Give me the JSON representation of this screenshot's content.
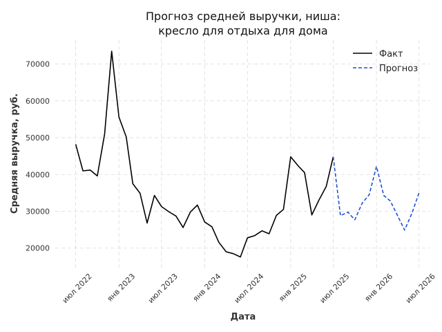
{
  "chart_data": {
    "type": "line",
    "title": [
      "Прогноз средней выручки, ниша:",
      "кресло для отдыха для дома"
    ],
    "xlabel": "Дата",
    "ylabel": "Средняя выручка, руб.",
    "ylim": [
      14500,
      76500
    ],
    "yticks": [
      20000,
      30000,
      40000,
      50000,
      60000,
      70000
    ],
    "xlim": [
      "2022-04-05",
      "2026-08-15"
    ],
    "xticks": [
      {
        "date": "2022-07-01",
        "label": "июл 2022"
      },
      {
        "date": "2023-01-01",
        "label": "янв 2023"
      },
      {
        "date": "2023-07-01",
        "label": "июл 2023"
      },
      {
        "date": "2024-01-01",
        "label": "янв 2024"
      },
      {
        "date": "2024-07-01",
        "label": "июл 2024"
      },
      {
        "date": "2025-01-01",
        "label": "янв 2025"
      },
      {
        "date": "2025-07-01",
        "label": "июл 2025"
      },
      {
        "date": "2026-01-01",
        "label": "янв 2026"
      },
      {
        "date": "2026-07-01",
        "label": "июл 2026"
      }
    ],
    "grid": true,
    "legend_position": "top-right",
    "series": [
      {
        "name": "Факт",
        "color": "#000000",
        "style": "solid",
        "points": [
          [
            "2022-07-01",
            48200
          ],
          [
            "2022-08-01",
            41000
          ],
          [
            "2022-09-01",
            41200
          ],
          [
            "2022-10-01",
            39600
          ],
          [
            "2022-11-01",
            51000
          ],
          [
            "2022-12-01",
            73500
          ],
          [
            "2023-01-01",
            55600
          ],
          [
            "2023-02-01",
            50200
          ],
          [
            "2023-03-01",
            37500
          ],
          [
            "2023-04-01",
            34900
          ],
          [
            "2023-05-01",
            26800
          ],
          [
            "2023-06-01",
            34300
          ],
          [
            "2023-07-01",
            31300
          ],
          [
            "2023-08-01",
            29900
          ],
          [
            "2023-09-01",
            28700
          ],
          [
            "2023-10-01",
            25600
          ],
          [
            "2023-11-01",
            29800
          ],
          [
            "2023-12-01",
            31700
          ],
          [
            "2024-01-01",
            27100
          ],
          [
            "2024-02-01",
            25800
          ],
          [
            "2024-03-01",
            21600
          ],
          [
            "2024-04-01",
            19000
          ],
          [
            "2024-05-01",
            18500
          ],
          [
            "2024-06-01",
            17600
          ],
          [
            "2024-07-01",
            22800
          ],
          [
            "2024-08-01",
            23400
          ],
          [
            "2024-09-01",
            24700
          ],
          [
            "2024-10-01",
            23900
          ],
          [
            "2024-11-01",
            28900
          ],
          [
            "2024-12-01",
            30500
          ],
          [
            "2025-01-01",
            44800
          ],
          [
            "2025-02-01",
            42400
          ],
          [
            "2025-03-01",
            40500
          ],
          [
            "2025-04-01",
            29000
          ],
          [
            "2025-05-01",
            33000
          ],
          [
            "2025-06-01",
            36700
          ],
          [
            "2025-07-01",
            44800
          ]
        ]
      },
      {
        "name": "Прогноз",
        "color": "#1f4fd1",
        "style": "dashed",
        "points": [
          [
            "2025-07-01",
            44800
          ],
          [
            "2025-08-01",
            28800
          ],
          [
            "2025-09-01",
            29800
          ],
          [
            "2025-10-01",
            27700
          ],
          [
            "2025-11-01",
            32200
          ],
          [
            "2025-12-01",
            34500
          ],
          [
            "2026-01-01",
            42200
          ],
          [
            "2026-02-01",
            34300
          ],
          [
            "2026-03-01",
            32800
          ],
          [
            "2026-04-01",
            28800
          ],
          [
            "2026-05-01",
            24900
          ],
          [
            "2026-06-01",
            29500
          ],
          [
            "2026-07-01",
            35000
          ]
        ]
      }
    ]
  }
}
